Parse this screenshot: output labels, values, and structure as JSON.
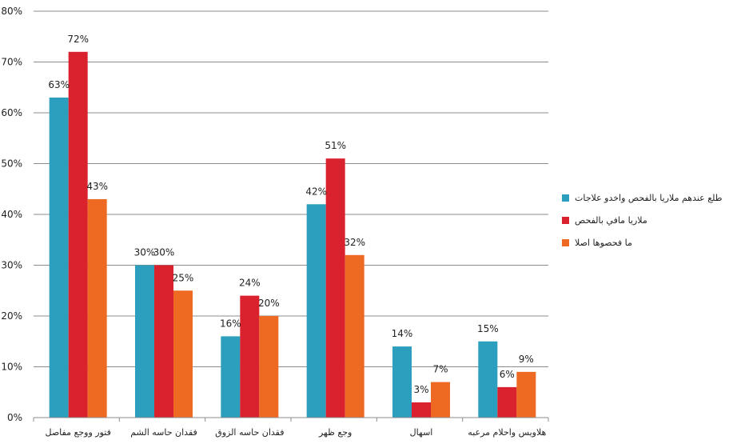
{
  "chart_data": {
    "type": "bar",
    "categories": [
      "فتور ووجع مفاصل",
      "فقدان حاسه الشم",
      "فقدان حاسه الزوق",
      "وجع ظهر",
      "اسهال",
      "هلاويس واحلام مرعبه"
    ],
    "series": [
      {
        "name": "طلع عندهم ملاريا بالفحص واخدو علاجات",
        "color": "#2b9fbd",
        "values": [
          63,
          30,
          16,
          42,
          14,
          15
        ]
      },
      {
        "name": "ملاريا مافي بالفحص",
        "color": "#d9222d",
        "values": [
          72,
          30,
          24,
          51,
          3,
          6
        ]
      },
      {
        "name": "ما فحصوها اصلا",
        "color": "#ee6a23",
        "values": [
          43,
          25,
          20,
          32,
          7,
          9
        ]
      }
    ],
    "ylim": [
      0,
      80
    ],
    "yticks": [
      0,
      10,
      20,
      30,
      40,
      50,
      60,
      70,
      80
    ],
    "value_suffix": "%",
    "grid": true,
    "legend_position": "right",
    "title": "",
    "xlabel": "",
    "ylabel": ""
  }
}
